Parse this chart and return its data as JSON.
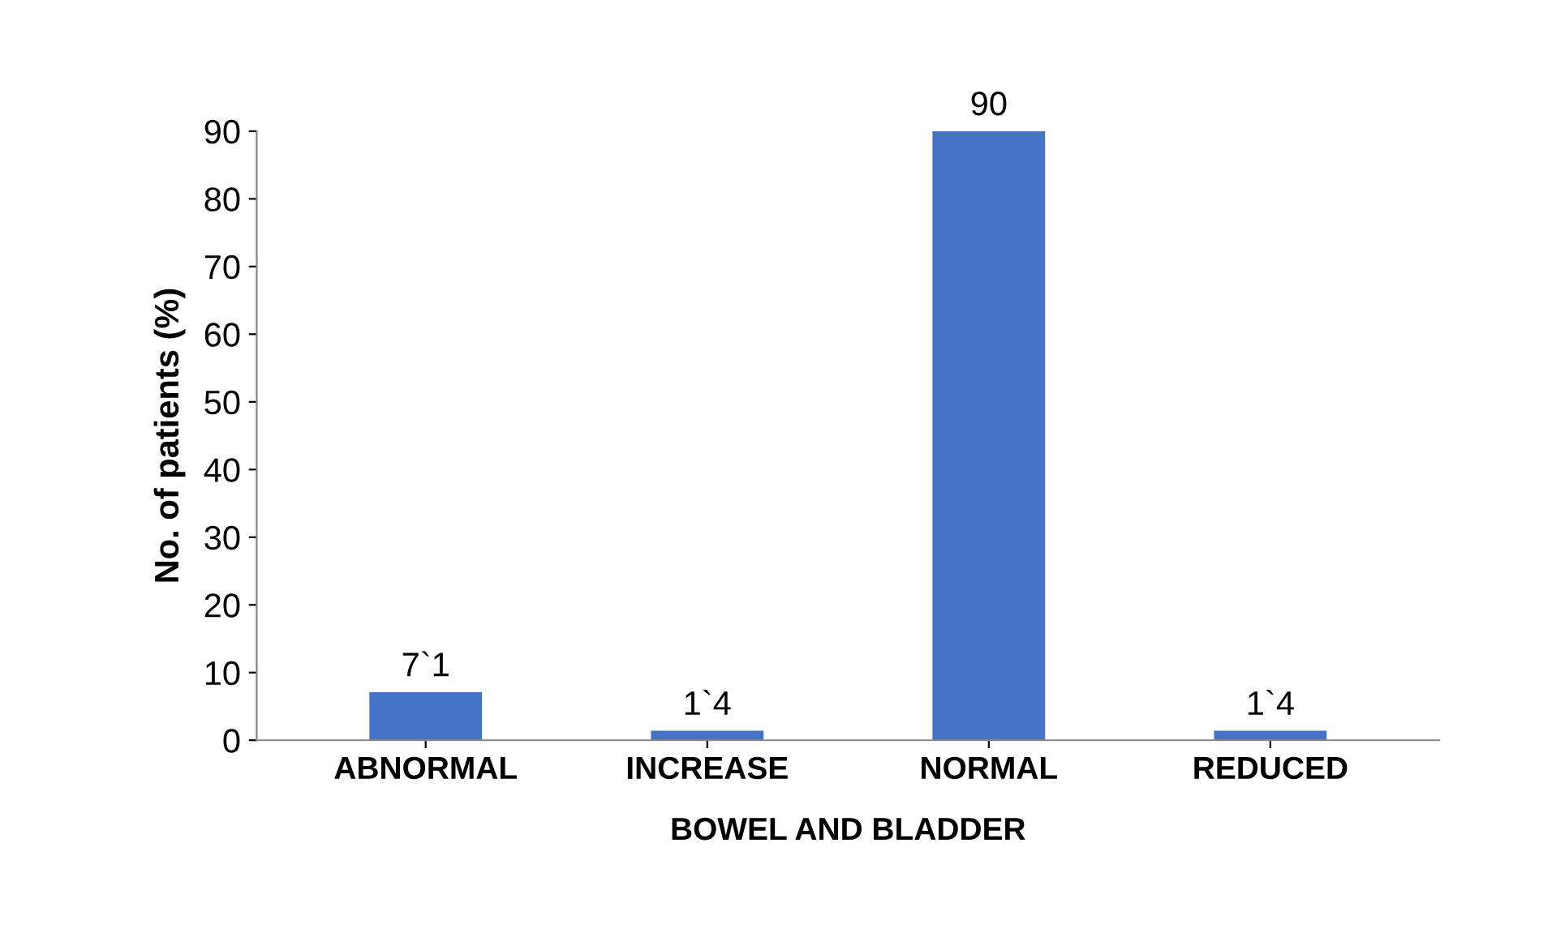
{
  "chart_data": {
    "type": "bar",
    "xlabel": "BOWEL AND BLADDER",
    "ylabel": "No. of patients (%)",
    "categories": [
      "ABNORMAL",
      "INCREASE",
      "NORMAL",
      "REDUCED"
    ],
    "values": [
      7.1,
      1.4,
      90,
      1.4
    ],
    "value_labels": [
      "7`1",
      "1`4",
      "90",
      "1`4"
    ],
    "color": "#4472c4",
    "ylim": [
      0,
      90
    ],
    "yticks": [
      0,
      10,
      20,
      30,
      40,
      50,
      60,
      70,
      80,
      90
    ],
    "grid": false
  }
}
